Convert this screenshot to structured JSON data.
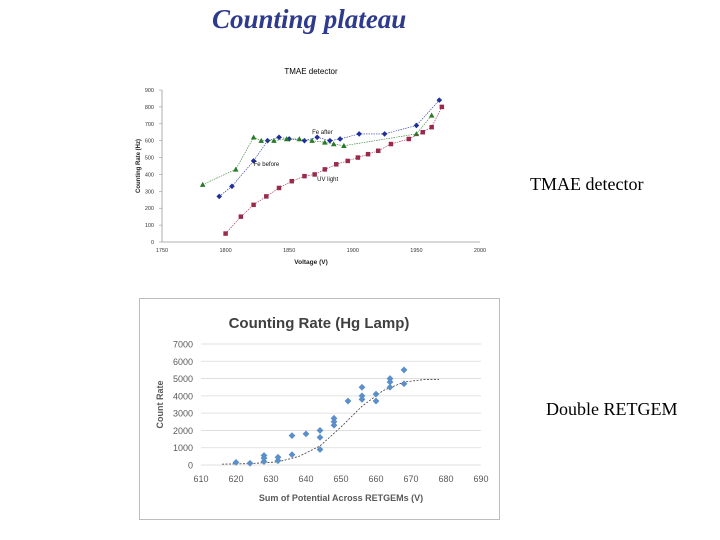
{
  "slide": {
    "title": "Counting plateau",
    "label_top": "TMAE detector",
    "label_bottom": "Double RETGEM"
  },
  "chart_data": [
    {
      "type": "line",
      "title": "TMAE detector",
      "xlabel": "Voltage (V)",
      "ylabel": "Counting Rate (Hz)",
      "xlim": [
        1750,
        2000
      ],
      "ylim": [
        0,
        900
      ],
      "xticks": [
        "1750",
        "1800",
        "1850",
        "1900",
        "1950",
        "2000"
      ],
      "yticks": [
        "0",
        "100",
        "200",
        "300",
        "400",
        "500",
        "600",
        "700",
        "800",
        "900"
      ],
      "grid": false,
      "series": [
        {
          "name": "Fe before",
          "color": "#1f2f9c",
          "marker": "diamond",
          "x": [
            1795,
            1805,
            1822,
            1833,
            1842,
            1850,
            1862,
            1872,
            1882,
            1890,
            1905,
            1925,
            1950,
            1968
          ],
          "y": [
            270,
            330,
            480,
            600,
            620,
            610,
            600,
            620,
            600,
            610,
            640,
            640,
            690,
            840
          ]
        },
        {
          "name": "Fe after",
          "color": "#2a7a2a",
          "marker": "triangle",
          "x": [
            1782,
            1808,
            1822,
            1828,
            1838,
            1848,
            1858,
            1868,
            1878,
            1885,
            1893,
            1950,
            1962
          ],
          "y": [
            340,
            430,
            620,
            600,
            600,
            610,
            610,
            600,
            590,
            580,
            570,
            640,
            750
          ]
        },
        {
          "name": "UV light",
          "color": "#9b2a4a",
          "marker": "square",
          "x": [
            1800,
            1812,
            1822,
            1832,
            1842,
            1852,
            1862,
            1870,
            1878,
            1887,
            1896,
            1904,
            1912,
            1920,
            1930,
            1944,
            1955,
            1962,
            1970
          ],
          "y": [
            50,
            150,
            220,
            270,
            320,
            360,
            390,
            400,
            430,
            460,
            480,
            500,
            520,
            540,
            580,
            610,
            650,
            680,
            800
          ]
        }
      ],
      "annotations": [
        "Fe after",
        "Fe before",
        "UV light"
      ]
    },
    {
      "type": "scatter",
      "title": "Counting Rate (Hg Lamp)",
      "xlabel": "Sum of Potential Across RETGEMs (V)",
      "ylabel": "Count Rate",
      "xlim": [
        610,
        690
      ],
      "ylim": [
        0,
        7000
      ],
      "xticks": [
        "610",
        "620",
        "630",
        "640",
        "650",
        "660",
        "670",
        "680",
        "690"
      ],
      "yticks": [
        "0",
        "1000",
        "2000",
        "3000",
        "4000",
        "5000",
        "6000",
        "7000"
      ],
      "grid": true,
      "series": [
        {
          "name": "Count Rate",
          "color": "#5b8fc9",
          "marker": "diamond",
          "x": [
            620,
            624,
            628,
            628,
            628,
            632,
            632,
            636,
            636,
            640,
            644,
            644,
            644,
            648,
            648,
            648,
            652,
            656,
            656,
            656,
            660,
            660,
            664,
            664,
            664,
            668,
            668
          ],
          "y": [
            150,
            100,
            200,
            400,
            550,
            250,
            450,
            600,
            1700,
            1800,
            900,
            1600,
            2000,
            2300,
            2500,
            2700,
            3700,
            3800,
            4000,
            4500,
            3700,
            4100,
            4500,
            4800,
            5000,
            5500,
            4700
          ]
        }
      ],
      "trendline": {
        "x": [
          616,
          624,
          632,
          638,
          644,
          650,
          656,
          662,
          668,
          674,
          678
        ],
        "y": [
          50,
          80,
          180,
          500,
          1100,
          2200,
          3400,
          4300,
          4800,
          4950,
          4950
        ]
      }
    }
  ]
}
